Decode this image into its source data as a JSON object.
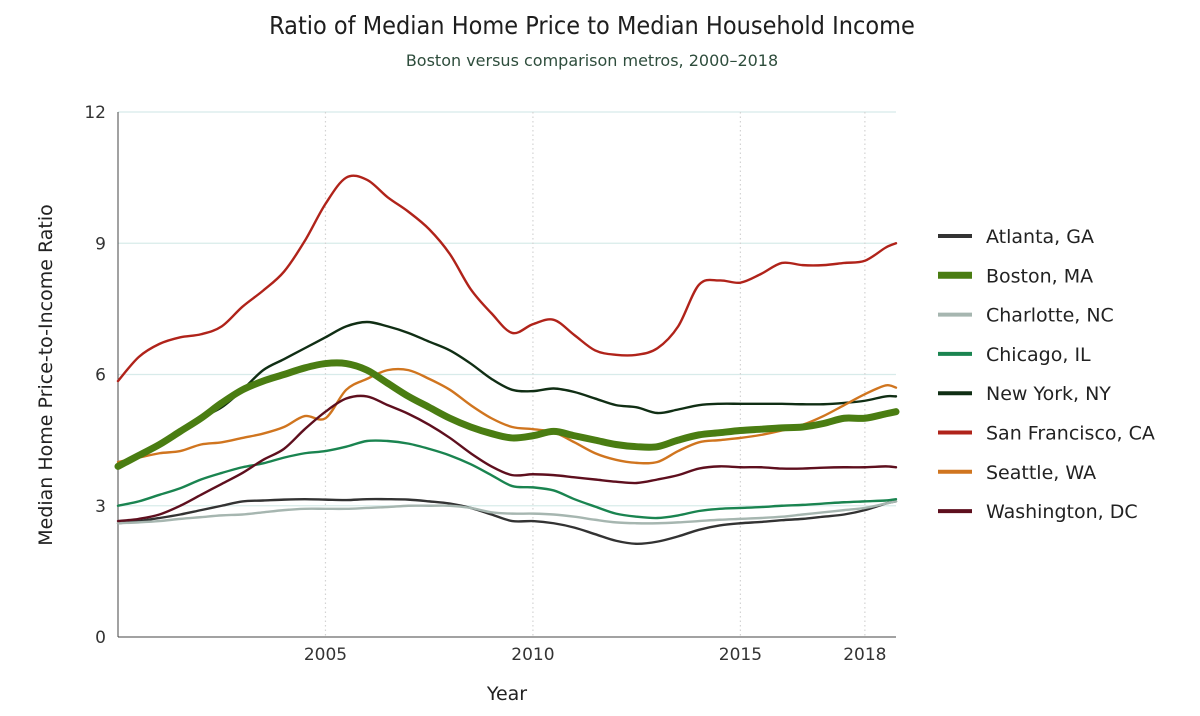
{
  "chart_data": {
    "type": "line",
    "title": "Ratio of Median Home Price to Median Household Income",
    "subtitle": "Boston versus comparison metros, 2000–2018",
    "xlabel": "Year",
    "ylabel": "Median Home Price-to-Income Ratio",
    "xlim": [
      2000.0,
      2018.75
    ],
    "ylim": [
      0,
      12
    ],
    "x_ticks": [
      2005,
      2010,
      2015,
      2018
    ],
    "y_ticks": [
      0,
      3,
      6,
      9,
      12
    ],
    "x_tick_labels": [
      "2005",
      "2010",
      "2015",
      "2018"
    ],
    "y_tick_labels": [
      "0",
      "3",
      "6",
      "9",
      "12"
    ],
    "grid": {
      "horizontal": true,
      "vertical_dotted": true
    },
    "legend_placement": "right",
    "highlight_series": "Boston, MA",
    "x": [
      2000.0,
      2000.5,
      2001.0,
      2001.5,
      2002.0,
      2002.5,
      2003.0,
      2003.5,
      2004.0,
      2004.5,
      2005.0,
      2005.5,
      2006.0,
      2006.5,
      2007.0,
      2007.5,
      2008.0,
      2008.5,
      2009.0,
      2009.5,
      2010.0,
      2010.5,
      2011.0,
      2011.5,
      2012.0,
      2012.5,
      2013.0,
      2013.5,
      2014.0,
      2014.5,
      2015.0,
      2015.5,
      2016.0,
      2016.5,
      2017.0,
      2017.5,
      2018.0,
      2018.5,
      2018.75
    ],
    "series": [
      {
        "name": "Atlanta, GA",
        "color": "#333333",
        "values": [
          2.6,
          2.65,
          2.72,
          2.8,
          2.9,
          3.0,
          3.1,
          3.12,
          3.14,
          3.15,
          3.14,
          3.13,
          3.15,
          3.15,
          3.14,
          3.1,
          3.05,
          2.95,
          2.8,
          2.65,
          2.65,
          2.6,
          2.5,
          2.35,
          2.2,
          2.13,
          2.18,
          2.3,
          2.45,
          2.55,
          2.6,
          2.63,
          2.67,
          2.7,
          2.75,
          2.8,
          2.9,
          3.05,
          3.1
        ]
      },
      {
        "name": "Boston, MA",
        "color": "#4a7d12",
        "values": [
          3.9,
          4.15,
          4.4,
          4.7,
          5.0,
          5.35,
          5.65,
          5.85,
          6.0,
          6.15,
          6.25,
          6.25,
          6.1,
          5.8,
          5.5,
          5.25,
          5.0,
          4.8,
          4.65,
          4.55,
          4.6,
          4.7,
          4.6,
          4.5,
          4.4,
          4.35,
          4.35,
          4.5,
          4.62,
          4.67,
          4.72,
          4.75,
          4.78,
          4.8,
          4.88,
          5.0,
          5.0,
          5.1,
          5.15
        ]
      },
      {
        "name": "Charlotte, NC",
        "color": "#a6b6b0",
        "values": [
          2.6,
          2.62,
          2.65,
          2.7,
          2.74,
          2.78,
          2.8,
          2.85,
          2.9,
          2.93,
          2.93,
          2.93,
          2.95,
          2.97,
          3.0,
          3.0,
          3.0,
          2.95,
          2.85,
          2.82,
          2.82,
          2.8,
          2.75,
          2.68,
          2.62,
          2.6,
          2.6,
          2.62,
          2.65,
          2.68,
          2.7,
          2.72,
          2.75,
          2.8,
          2.85,
          2.9,
          2.95,
          3.05,
          3.1
        ]
      },
      {
        "name": "Chicago, IL",
        "color": "#1a8450",
        "values": [
          3.0,
          3.1,
          3.25,
          3.4,
          3.6,
          3.75,
          3.88,
          3.97,
          4.1,
          4.2,
          4.25,
          4.35,
          4.48,
          4.48,
          4.42,
          4.3,
          4.15,
          3.95,
          3.7,
          3.45,
          3.42,
          3.35,
          3.15,
          2.98,
          2.82,
          2.75,
          2.72,
          2.78,
          2.88,
          2.93,
          2.95,
          2.97,
          3.0,
          3.02,
          3.05,
          3.08,
          3.1,
          3.12,
          3.15
        ]
      },
      {
        "name": "New York, NY",
        "color": "#102e14",
        "values": [
          3.9,
          4.2,
          4.4,
          4.65,
          5.0,
          5.25,
          5.65,
          6.1,
          6.35,
          6.6,
          6.85,
          7.1,
          7.2,
          7.1,
          6.95,
          6.75,
          6.55,
          6.25,
          5.9,
          5.65,
          5.62,
          5.68,
          5.6,
          5.45,
          5.3,
          5.25,
          5.12,
          5.2,
          5.3,
          5.33,
          5.33,
          5.33,
          5.33,
          5.32,
          5.32,
          5.35,
          5.4,
          5.5,
          5.5
        ]
      },
      {
        "name": "San Francisco, CA",
        "color": "#b0231a",
        "values": [
          5.85,
          6.4,
          6.7,
          6.85,
          6.92,
          7.1,
          7.55,
          7.92,
          8.35,
          9.05,
          9.9,
          10.5,
          10.45,
          10.05,
          9.72,
          9.32,
          8.75,
          7.95,
          7.4,
          6.95,
          7.15,
          7.25,
          6.9,
          6.55,
          6.45,
          6.45,
          6.6,
          7.1,
          8.05,
          8.15,
          8.1,
          8.3,
          8.55,
          8.5,
          8.5,
          8.55,
          8.6,
          8.9,
          9.0
        ]
      },
      {
        "name": "Seattle, WA",
        "color": "#d0751f",
        "values": [
          4.0,
          4.1,
          4.2,
          4.25,
          4.4,
          4.45,
          4.55,
          4.65,
          4.8,
          5.05,
          5.0,
          5.65,
          5.9,
          6.1,
          6.1,
          5.9,
          5.65,
          5.3,
          5.0,
          4.8,
          4.75,
          4.68,
          4.45,
          4.2,
          4.05,
          3.98,
          4.0,
          4.25,
          4.45,
          4.5,
          4.55,
          4.62,
          4.72,
          4.85,
          5.05,
          5.3,
          5.55,
          5.75,
          5.7
        ]
      },
      {
        "name": "Washington, DC",
        "color": "#5e0f1e",
        "values": [
          2.65,
          2.7,
          2.8,
          3.0,
          3.25,
          3.5,
          3.75,
          4.05,
          4.3,
          4.75,
          5.15,
          5.45,
          5.5,
          5.3,
          5.1,
          4.85,
          4.55,
          4.2,
          3.9,
          3.7,
          3.72,
          3.7,
          3.65,
          3.6,
          3.55,
          3.52,
          3.6,
          3.7,
          3.85,
          3.9,
          3.88,
          3.88,
          3.85,
          3.85,
          3.87,
          3.88,
          3.88,
          3.9,
          3.88
        ]
      }
    ]
  }
}
